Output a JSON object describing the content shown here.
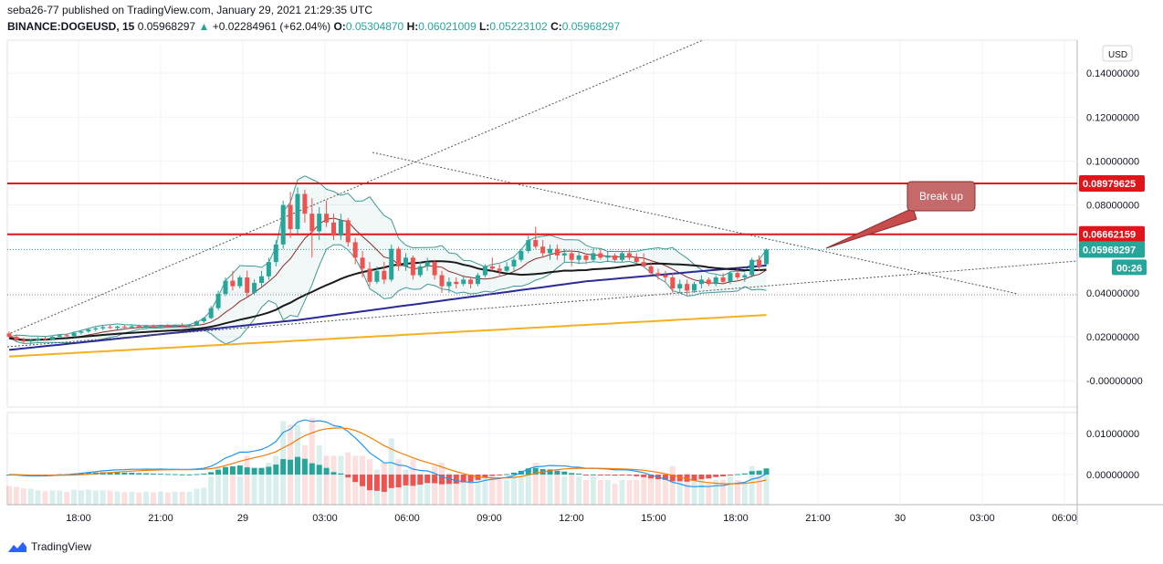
{
  "header": {
    "published": "seba26-77 published on TradingView.com, January 29, 2021 21:29:35 UTC",
    "symbol": "BINANCE:DOGEUSD, 15",
    "last": "0.05968297",
    "change": "+0.02284961 (+62.04%)",
    "o_label": "O:",
    "o": "0.05304870",
    "h_label": "H:",
    "h": "0.06021009",
    "l_label": "L:",
    "l": "0.05223102",
    "c_label": "C:",
    "c": "0.05968297"
  },
  "colors": {
    "up": "#26a69a",
    "down": "#ef5350",
    "resistance": "#e0151b",
    "ma_black": "#1a1a1a",
    "ma_blue": "#2a2a9a",
    "ma_orange": "#f5b021",
    "bb": "#3e9a94",
    "basis": "#8b2b2b",
    "macd": "#2196f3",
    "signal": "#f57c00"
  },
  "chart_data": {
    "type": "candlestick",
    "currency": "USD",
    "price_ticks": [
      "0.14000000",
      "0.12000000",
      "0.10000000",
      "0.08000000",
      "0.04000000",
      "0.02000000",
      "-0.00000000"
    ],
    "macd_ticks": [
      "0.01000000",
      "0.00000000"
    ],
    "x_ticks": [
      "18:00",
      "21:00",
      "29",
      "03:00",
      "06:00",
      "09:00",
      "12:00",
      "15:00",
      "18:00",
      "21:00",
      "30",
      "03:00",
      "06:00"
    ],
    "horizontal_levels": [
      0.08979625,
      0.06662159
    ],
    "level_labels": [
      "0.08979625",
      "0.06662159"
    ],
    "last_price_label": "0.05968297",
    "countdown": "00:26",
    "annotation": "Break up",
    "ylim": [
      -0.012,
      0.155
    ],
    "candles": [
      [
        0.0215,
        0.0225,
        0.0192,
        0.02
      ],
      [
        0.02,
        0.021,
        0.018,
        0.0185
      ],
      [
        0.0185,
        0.0196,
        0.017,
        0.0178
      ],
      [
        0.0178,
        0.019,
        0.0165,
        0.0184
      ],
      [
        0.0184,
        0.0198,
        0.0178,
        0.0192
      ],
      [
        0.0192,
        0.02,
        0.0182,
        0.0188
      ],
      [
        0.0188,
        0.0205,
        0.0185,
        0.02
      ],
      [
        0.02,
        0.0212,
        0.0193,
        0.0207
      ],
      [
        0.0207,
        0.0215,
        0.0199,
        0.0203
      ],
      [
        0.0203,
        0.0222,
        0.02,
        0.0218
      ],
      [
        0.0218,
        0.023,
        0.021,
        0.0224
      ],
      [
        0.0224,
        0.024,
        0.0218,
        0.0233
      ],
      [
        0.0233,
        0.0245,
        0.0225,
        0.0238
      ],
      [
        0.0238,
        0.025,
        0.023,
        0.0244
      ],
      [
        0.0244,
        0.0255,
        0.0236,
        0.024
      ],
      [
        0.024,
        0.025,
        0.0233,
        0.0246
      ],
      [
        0.0246,
        0.0255,
        0.024,
        0.0243
      ],
      [
        0.0243,
        0.0252,
        0.0236,
        0.0248
      ],
      [
        0.0248,
        0.0256,
        0.0242,
        0.0244
      ],
      [
        0.0244,
        0.0254,
        0.0238,
        0.0249
      ],
      [
        0.0249,
        0.0257,
        0.0243,
        0.0245
      ],
      [
        0.0245,
        0.0255,
        0.0239,
        0.0251
      ],
      [
        0.0251,
        0.0258,
        0.0244,
        0.0247
      ],
      [
        0.0247,
        0.0256,
        0.024,
        0.0252
      ],
      [
        0.0252,
        0.0262,
        0.0246,
        0.0248
      ],
      [
        0.0248,
        0.0258,
        0.0242,
        0.0254
      ],
      [
        0.0254,
        0.0275,
        0.025,
        0.027
      ],
      [
        0.027,
        0.029,
        0.0262,
        0.0285
      ],
      [
        0.0285,
        0.034,
        0.028,
        0.033
      ],
      [
        0.033,
        0.041,
        0.032,
        0.0395
      ],
      [
        0.0395,
        0.047,
        0.0385,
        0.0455
      ],
      [
        0.0455,
        0.05,
        0.041,
        0.043
      ],
      [
        0.043,
        0.048,
        0.042,
        0.047
      ],
      [
        0.047,
        0.05,
        0.038,
        0.04
      ],
      [
        0.04,
        0.046,
        0.039,
        0.0445
      ],
      [
        0.0445,
        0.05,
        0.043,
        0.0475
      ],
      [
        0.0475,
        0.056,
        0.046,
        0.054
      ],
      [
        0.054,
        0.064,
        0.052,
        0.062
      ],
      [
        0.062,
        0.082,
        0.06,
        0.08
      ],
      [
        0.08,
        0.086,
        0.065,
        0.069
      ],
      [
        0.069,
        0.088,
        0.067,
        0.085
      ],
      [
        0.085,
        0.087,
        0.072,
        0.076
      ],
      [
        0.076,
        0.083,
        0.056,
        0.068
      ],
      [
        0.068,
        0.079,
        0.064,
        0.076
      ],
      [
        0.076,
        0.082,
        0.07,
        0.072
      ],
      [
        0.072,
        0.076,
        0.064,
        0.066
      ],
      [
        0.066,
        0.076,
        0.064,
        0.073
      ],
      [
        0.073,
        0.074,
        0.061,
        0.063
      ],
      [
        0.063,
        0.065,
        0.053,
        0.056
      ],
      [
        0.056,
        0.059,
        0.047,
        0.051
      ],
      [
        0.051,
        0.054,
        0.043,
        0.045
      ],
      [
        0.045,
        0.052,
        0.044,
        0.05
      ],
      [
        0.05,
        0.054,
        0.044,
        0.046
      ],
      [
        0.046,
        0.062,
        0.045,
        0.06
      ],
      [
        0.06,
        0.061,
        0.05,
        0.052
      ],
      [
        0.052,
        0.058,
        0.05,
        0.056
      ],
      [
        0.056,
        0.057,
        0.046,
        0.048
      ],
      [
        0.048,
        0.054,
        0.047,
        0.052
      ],
      [
        0.052,
        0.056,
        0.05,
        0.054
      ],
      [
        0.054,
        0.055,
        0.046,
        0.048
      ],
      [
        0.048,
        0.05,
        0.04,
        0.043
      ],
      [
        0.043,
        0.047,
        0.04,
        0.045
      ],
      [
        0.045,
        0.047,
        0.042,
        0.044
      ],
      [
        0.044,
        0.048,
        0.043,
        0.046
      ],
      [
        0.046,
        0.047,
        0.042,
        0.044
      ],
      [
        0.044,
        0.049,
        0.043,
        0.048
      ],
      [
        0.048,
        0.053,
        0.047,
        0.052
      ],
      [
        0.052,
        0.056,
        0.05,
        0.051
      ],
      [
        0.051,
        0.053,
        0.048,
        0.05
      ],
      [
        0.05,
        0.054,
        0.049,
        0.052
      ],
      [
        0.052,
        0.056,
        0.05,
        0.055
      ],
      [
        0.055,
        0.06,
        0.054,
        0.059
      ],
      [
        0.059,
        0.066,
        0.058,
        0.064
      ],
      [
        0.064,
        0.07,
        0.06,
        0.061
      ],
      [
        0.061,
        0.064,
        0.056,
        0.058
      ],
      [
        0.058,
        0.062,
        0.055,
        0.06
      ],
      [
        0.06,
        0.062,
        0.055,
        0.057
      ],
      [
        0.057,
        0.06,
        0.054,
        0.058
      ],
      [
        0.058,
        0.059,
        0.052,
        0.055
      ],
      [
        0.055,
        0.059,
        0.053,
        0.057
      ],
      [
        0.057,
        0.058,
        0.053,
        0.055
      ],
      [
        0.055,
        0.06,
        0.054,
        0.058
      ],
      [
        0.058,
        0.06,
        0.055,
        0.056
      ],
      [
        0.056,
        0.059,
        0.054,
        0.057
      ],
      [
        0.057,
        0.058,
        0.054,
        0.055
      ],
      [
        0.055,
        0.059,
        0.054,
        0.058
      ],
      [
        0.058,
        0.06,
        0.055,
        0.056
      ],
      [
        0.056,
        0.058,
        0.053,
        0.054
      ],
      [
        0.054,
        0.058,
        0.052,
        0.052
      ],
      [
        0.052,
        0.054,
        0.048,
        0.049
      ],
      [
        0.049,
        0.051,
        0.046,
        0.048
      ],
      [
        0.048,
        0.05,
        0.045,
        0.047
      ],
      [
        0.047,
        0.049,
        0.04,
        0.042
      ],
      [
        0.042,
        0.046,
        0.04,
        0.044
      ],
      [
        0.044,
        0.046,
        0.039,
        0.041
      ],
      [
        0.041,
        0.045,
        0.04,
        0.044
      ],
      [
        0.044,
        0.048,
        0.042,
        0.046
      ],
      [
        0.046,
        0.047,
        0.043,
        0.044
      ],
      [
        0.044,
        0.048,
        0.043,
        0.047
      ],
      [
        0.047,
        0.049,
        0.044,
        0.045
      ],
      [
        0.045,
        0.05,
        0.044,
        0.049
      ],
      [
        0.049,
        0.051,
        0.046,
        0.047
      ],
      [
        0.047,
        0.049,
        0.045,
        0.048
      ],
      [
        0.048,
        0.056,
        0.047,
        0.055
      ],
      [
        0.055,
        0.057,
        0.05,
        0.052
      ],
      [
        0.053,
        0.0602,
        0.0522,
        0.0597
      ]
    ]
  }
}
